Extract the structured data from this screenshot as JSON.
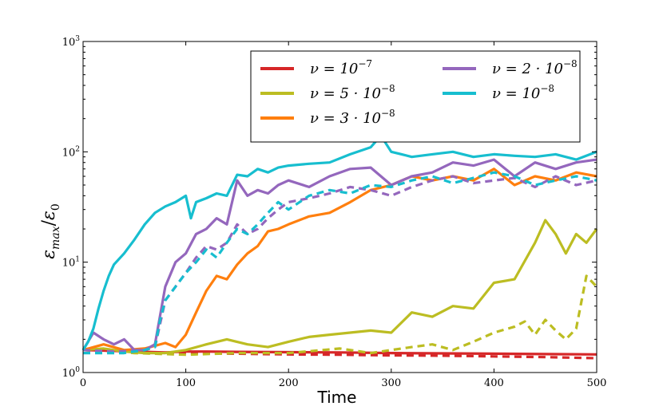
{
  "chart_data": {
    "type": "line",
    "xlabel": "Time",
    "ylabel": "ε_max/ε_0",
    "ylabel_main": "ε",
    "ylabel_sub1": "max",
    "ylabel_slash": "/",
    "ylabel_sub2": "0",
    "xlim": [
      0,
      500
    ],
    "ylim": [
      1,
      1000
    ],
    "yscale": "log",
    "legend_position": "top-right",
    "x_ticks": [
      0,
      100,
      200,
      300,
      400,
      500
    ],
    "x_tick_labels": [
      "0",
      "100",
      "200",
      "300",
      "400",
      "500"
    ],
    "y_ticks": [
      1,
      10,
      100,
      1000
    ],
    "y_tick_base": "10",
    "y_tick_exponents": [
      "0",
      "1",
      "2",
      "3"
    ],
    "series": [
      {
        "name": "ν = 10^-7",
        "legend_text": "ν = 10",
        "legend_exp": "−7",
        "color": "#d62728",
        "solid": {
          "x": [
            0,
            20,
            40,
            60,
            80,
            100,
            120,
            150,
            200,
            250,
            300,
            350,
            400,
            450,
            500
          ],
          "y": [
            1.6,
            1.58,
            1.56,
            1.54,
            1.52,
            1.55,
            1.55,
            1.54,
            1.53,
            1.52,
            1.5,
            1.49,
            1.48,
            1.47,
            1.46
          ]
        },
        "dashed": {
          "x": [
            0,
            50,
            100,
            150,
            200,
            250,
            300,
            350,
            400,
            450,
            500
          ],
          "y": [
            1.6,
            1.52,
            1.5,
            1.48,
            1.46,
            1.45,
            1.43,
            1.42,
            1.4,
            1.38,
            1.35
          ]
        }
      },
      {
        "name": "ν = 5·10^-8",
        "legend_text": "ν = 5 · 10",
        "legend_exp": "−8",
        "color": "#bcbd22",
        "solid": {
          "x": [
            0,
            20,
            40,
            60,
            80,
            100,
            120,
            140,
            160,
            180,
            200,
            220,
            240,
            260,
            280,
            300,
            320,
            340,
            360,
            380,
            400,
            420,
            440,
            450,
            460,
            470,
            480,
            490,
            500
          ],
          "y": [
            1.6,
            1.65,
            1.55,
            1.5,
            1.5,
            1.6,
            1.8,
            2.0,
            1.8,
            1.7,
            1.9,
            2.1,
            2.2,
            2.3,
            2.4,
            2.3,
            3.5,
            3.2,
            4.0,
            3.8,
            6.5,
            7.0,
            15,
            24,
            18,
            12,
            18,
            15,
            20
          ]
        },
        "dashed": {
          "x": [
            0,
            50,
            100,
            150,
            200,
            250,
            280,
            300,
            320,
            340,
            360,
            380,
            400,
            420,
            430,
            440,
            450,
            460,
            470,
            480,
            490,
            500
          ],
          "y": [
            1.6,
            1.5,
            1.45,
            1.5,
            1.5,
            1.65,
            1.5,
            1.6,
            1.7,
            1.8,
            1.6,
            1.9,
            2.3,
            2.6,
            2.9,
            2.2,
            3.0,
            2.4,
            2.0,
            2.5,
            7.5,
            6.0
          ]
        }
      },
      {
        "name": "ν = 3·10^-8",
        "legend_text": "ν = 3 · 10",
        "legend_exp": "−8",
        "color": "#ff7f0e",
        "solid": {
          "x": [
            0,
            20,
            40,
            60,
            80,
            90,
            100,
            110,
            120,
            130,
            140,
            150,
            160,
            170,
            180,
            190,
            200,
            220,
            240,
            260,
            280,
            300,
            320,
            340,
            360,
            380,
            400,
            420,
            440,
            460,
            480,
            500
          ],
          "y": [
            1.6,
            1.8,
            1.6,
            1.65,
            1.85,
            1.7,
            2.2,
            3.5,
            5.5,
            7.5,
            7.0,
            9.5,
            12,
            14,
            19,
            20,
            22,
            26,
            28,
            35,
            45,
            50,
            60,
            55,
            60,
            55,
            70,
            50,
            60,
            55,
            65,
            60
          ]
        }
      },
      {
        "name": "ν = 2·10^-8",
        "legend_text": "ν = 2 · 10",
        "legend_exp": "−8",
        "color": "#9467bd",
        "solid": {
          "x": [
            0,
            10,
            20,
            30,
            40,
            50,
            60,
            70,
            80,
            90,
            100,
            110,
            120,
            130,
            140,
            150,
            160,
            170,
            180,
            190,
            200,
            220,
            240,
            260,
            280,
            300,
            320,
            340,
            360,
            380,
            400,
            420,
            440,
            460,
            480,
            500
          ],
          "y": [
            1.6,
            2.3,
            2.0,
            1.8,
            2.0,
            1.6,
            1.6,
            1.8,
            6.0,
            10,
            12,
            18,
            20,
            25,
            22,
            55,
            40,
            45,
            42,
            50,
            55,
            48,
            60,
            70,
            72,
            50,
            60,
            65,
            80,
            75,
            85,
            60,
            80,
            70,
            80,
            85
          ]
        },
        "dashed": {
          "x": [
            0,
            30,
            60,
            70,
            80,
            90,
            100,
            110,
            120,
            130,
            140,
            150,
            160,
            170,
            180,
            190,
            200,
            220,
            240,
            260,
            280,
            300,
            320,
            340,
            360,
            380,
            400,
            420,
            440,
            460,
            480,
            500
          ],
          "y": [
            1.6,
            1.55,
            1.6,
            1.7,
            4.5,
            6.0,
            8.0,
            11,
            14,
            13,
            15,
            22,
            18,
            20,
            25,
            30,
            35,
            38,
            42,
            48,
            45,
            40,
            48,
            55,
            60,
            52,
            55,
            58,
            48,
            60,
            50,
            55
          ]
        }
      },
      {
        "name": "ν = 10^-8",
        "legend_text": "ν = 10",
        "legend_exp": "−8",
        "color": "#17becf",
        "solid": {
          "x": [
            0,
            5,
            10,
            15,
            20,
            25,
            30,
            40,
            50,
            60,
            70,
            80,
            90,
            100,
            105,
            110,
            120,
            130,
            140,
            150,
            160,
            170,
            180,
            190,
            200,
            220,
            240,
            260,
            280,
            290,
            300,
            310,
            320,
            340,
            360,
            380,
            400,
            420,
            440,
            460,
            480,
            500
          ],
          "y": [
            1.6,
            1.9,
            2.5,
            3.8,
            5.5,
            7.5,
            9.5,
            12,
            16,
            22,
            28,
            32,
            35,
            40,
            25,
            35,
            38,
            42,
            40,
            62,
            60,
            70,
            65,
            72,
            75,
            78,
            80,
            95,
            110,
            140,
            100,
            95,
            90,
            95,
            100,
            90,
            95,
            92,
            90,
            95,
            85,
            100
          ]
        },
        "dashed": {
          "x": [
            0,
            40,
            60,
            70,
            75,
            80,
            90,
            100,
            110,
            120,
            130,
            140,
            150,
            160,
            170,
            180,
            190,
            200,
            220,
            240,
            260,
            280,
            300,
            320,
            340,
            360,
            380,
            400,
            420,
            440,
            460,
            480,
            500
          ],
          "y": [
            1.5,
            1.5,
            1.6,
            1.7,
            3.0,
            4.5,
            6.0,
            8.0,
            10,
            13,
            11,
            15,
            20,
            18,
            22,
            28,
            35,
            30,
            40,
            45,
            42,
            50,
            48,
            55,
            60,
            52,
            58,
            65,
            60,
            50,
            55,
            60,
            55
          ]
        }
      }
    ]
  }
}
